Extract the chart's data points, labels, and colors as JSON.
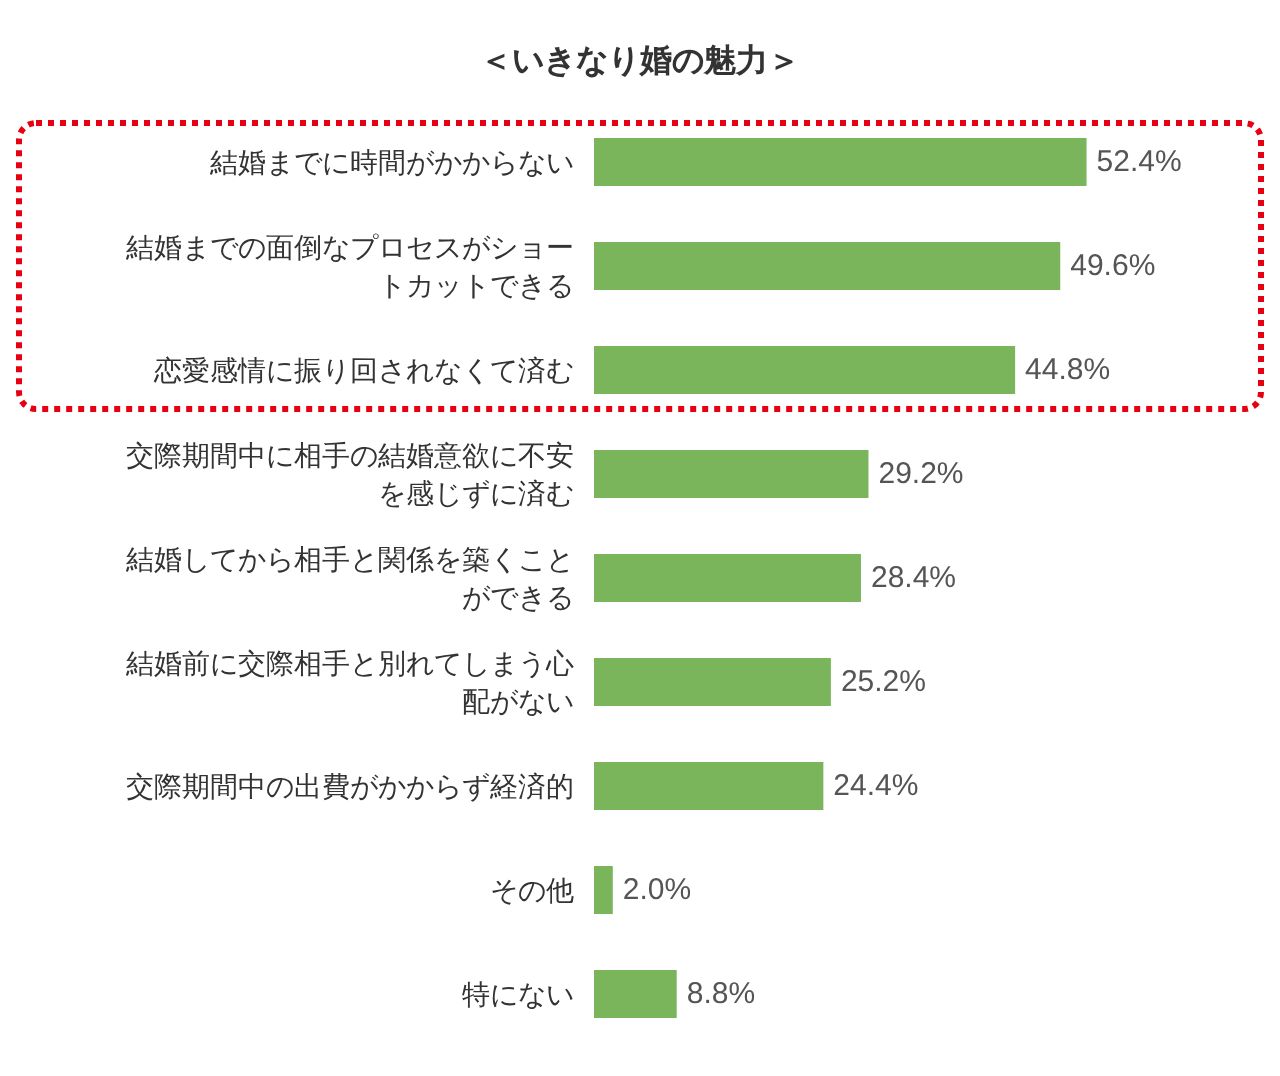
{
  "chart_data": {
    "type": "bar",
    "orientation": "horizontal",
    "title": "＜いきなり婚の魅力＞",
    "categories": [
      "結婚までに時間がかからない",
      "結婚までの面倒なプロセスがショートカットできる",
      "恋愛感情に振り回されなくて済む",
      "交際期間中に相手の結婚意欲に不安を感じずに済む",
      "結婚してから相手と関係を築くことができる",
      "結婚前に交際相手と別れてしまう心配がない",
      "交際期間中の出費がかからず経済的",
      "その他",
      "特にない"
    ],
    "values": [
      52.4,
      49.6,
      44.8,
      29.2,
      28.4,
      25.2,
      24.4,
      2.0,
      8.8
    ],
    "value_labels": [
      "52.4%",
      "49.6%",
      "44.8%",
      "29.2%",
      "28.4%",
      "25.2%",
      "24.4%",
      "2.0%",
      "8.8%"
    ],
    "color": "#7ab55c",
    "grid": false,
    "tick_labels": "y"
  }
}
